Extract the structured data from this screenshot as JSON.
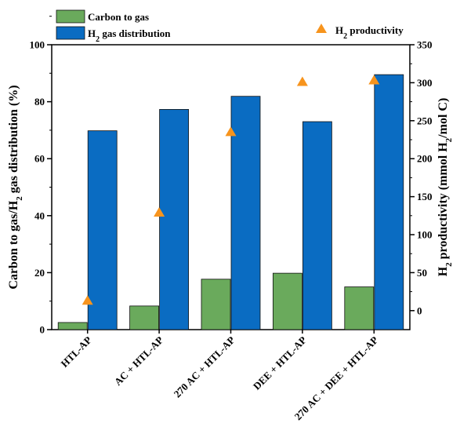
{
  "chart_data": {
    "type": "bar",
    "categories": [
      "HTL-AP",
      "AC + HTL-AP",
      "270 AC + HTL-AP",
      "DEE + HTL-AP",
      "270 AC + DEE + HTL-AP"
    ],
    "series": [
      {
        "name": "Carbon to gas",
        "axis": "left",
        "kind": "bar",
        "color": "#6aaa5c",
        "values": [
          2.5,
          8.3,
          17.7,
          19.8,
          15.0
        ]
      },
      {
        "name": "H2 gas distribution",
        "axis": "left",
        "kind": "bar",
        "color": "#0a6cc2",
        "values": [
          69.8,
          77.3,
          81.9,
          73.0,
          89.5
        ]
      },
      {
        "name": "H2 productivity",
        "axis": "right",
        "kind": "scatter",
        "marker": "triangle-up",
        "color": "#f7941d",
        "values": [
          14,
          130,
          236,
          302,
          304
        ]
      }
    ],
    "y_left": {
      "label": "Carbon to gas/H2 gas distribution (%)",
      "label_parts": [
        "Carbon to gas/H",
        "2",
        " gas distribution (%)"
      ],
      "min": 0,
      "max": 100,
      "ticks": [
        "0",
        "20",
        "40",
        "60",
        "80",
        "100"
      ]
    },
    "y_right": {
      "label": "H2 productivity (mmol H2/mol C)",
      "label_parts": [
        "H",
        "2",
        " productivity (mmol H",
        "2",
        "/mol C)"
      ],
      "min": -25,
      "max": 350,
      "ticks": [
        "0",
        "50",
        "100",
        "150",
        "200",
        "250",
        "300",
        "350"
      ]
    },
    "legend": {
      "placement": "top",
      "items": [
        {
          "parts": [
            "Carbon to gas"
          ],
          "color": "#6aaa5c",
          "shape": "rect"
        },
        {
          "parts": [
            "H",
            "2",
            " gas distribution"
          ],
          "color": "#0a6cc2",
          "shape": "rect"
        },
        {
          "parts": [
            "H",
            "2",
            " productivity"
          ],
          "color": "#f7941d",
          "shape": "triangle"
        }
      ]
    },
    "grid": false
  }
}
